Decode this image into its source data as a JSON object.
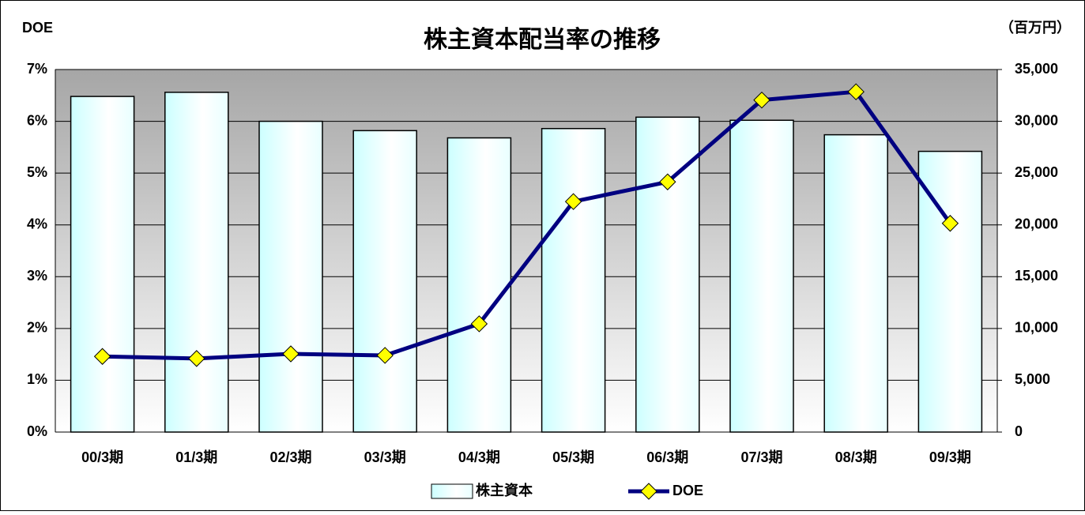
{
  "chart_data": {
    "type": "bar_line",
    "title": "株主資本配当率の推移",
    "y_label": "DOE",
    "y2_label": "（百万円）",
    "categories": [
      "00/3期",
      "01/3期",
      "02/3期",
      "03/3期",
      "04/3期",
      "05/3期",
      "06/3期",
      "07/3期",
      "08/3期",
      "09/3期"
    ],
    "series": [
      {
        "name": "株主資本",
        "type": "bar",
        "axis": "y2",
        "color": "#ccffff",
        "values": [
          32400,
          32800,
          30000,
          29100,
          28400,
          29300,
          30400,
          30100,
          28700,
          27100
        ]
      },
      {
        "name": "DOE",
        "type": "line",
        "axis": "y",
        "color": "#000080",
        "marker_color": "#ffff00",
        "values": [
          1.46,
          1.42,
          1.51,
          1.48,
          2.09,
          4.45,
          4.83,
          6.41,
          6.57,
          4.03
        ]
      }
    ],
    "ylim": [
      0,
      7
    ],
    "yticks": [
      {
        "value": 0,
        "label": "0%"
      },
      {
        "value": 1,
        "label": "1%"
      },
      {
        "value": 2,
        "label": "2%"
      },
      {
        "value": 3,
        "label": "3%"
      },
      {
        "value": 4,
        "label": "4%"
      },
      {
        "value": 5,
        "label": "5%"
      },
      {
        "value": 6,
        "label": "6%"
      },
      {
        "value": 7,
        "label": "7%"
      }
    ],
    "y2lim": [
      0,
      35000
    ],
    "y2ticks": [
      0,
      {
        "value": 5000,
        "label": "5,000"
      },
      {
        "value": 10000,
        "label": "10,000"
      },
      {
        "value": 15000,
        "label": "15,000"
      },
      {
        "value": 20000,
        "label": "20,000"
      },
      {
        "value": 25000,
        "label": "25,000"
      },
      {
        "value": 30000,
        "label": "30,000"
      },
      {
        "value": 35000,
        "label": "35,000"
      }
    ],
    "grid": true,
    "legend": "bottom"
  }
}
